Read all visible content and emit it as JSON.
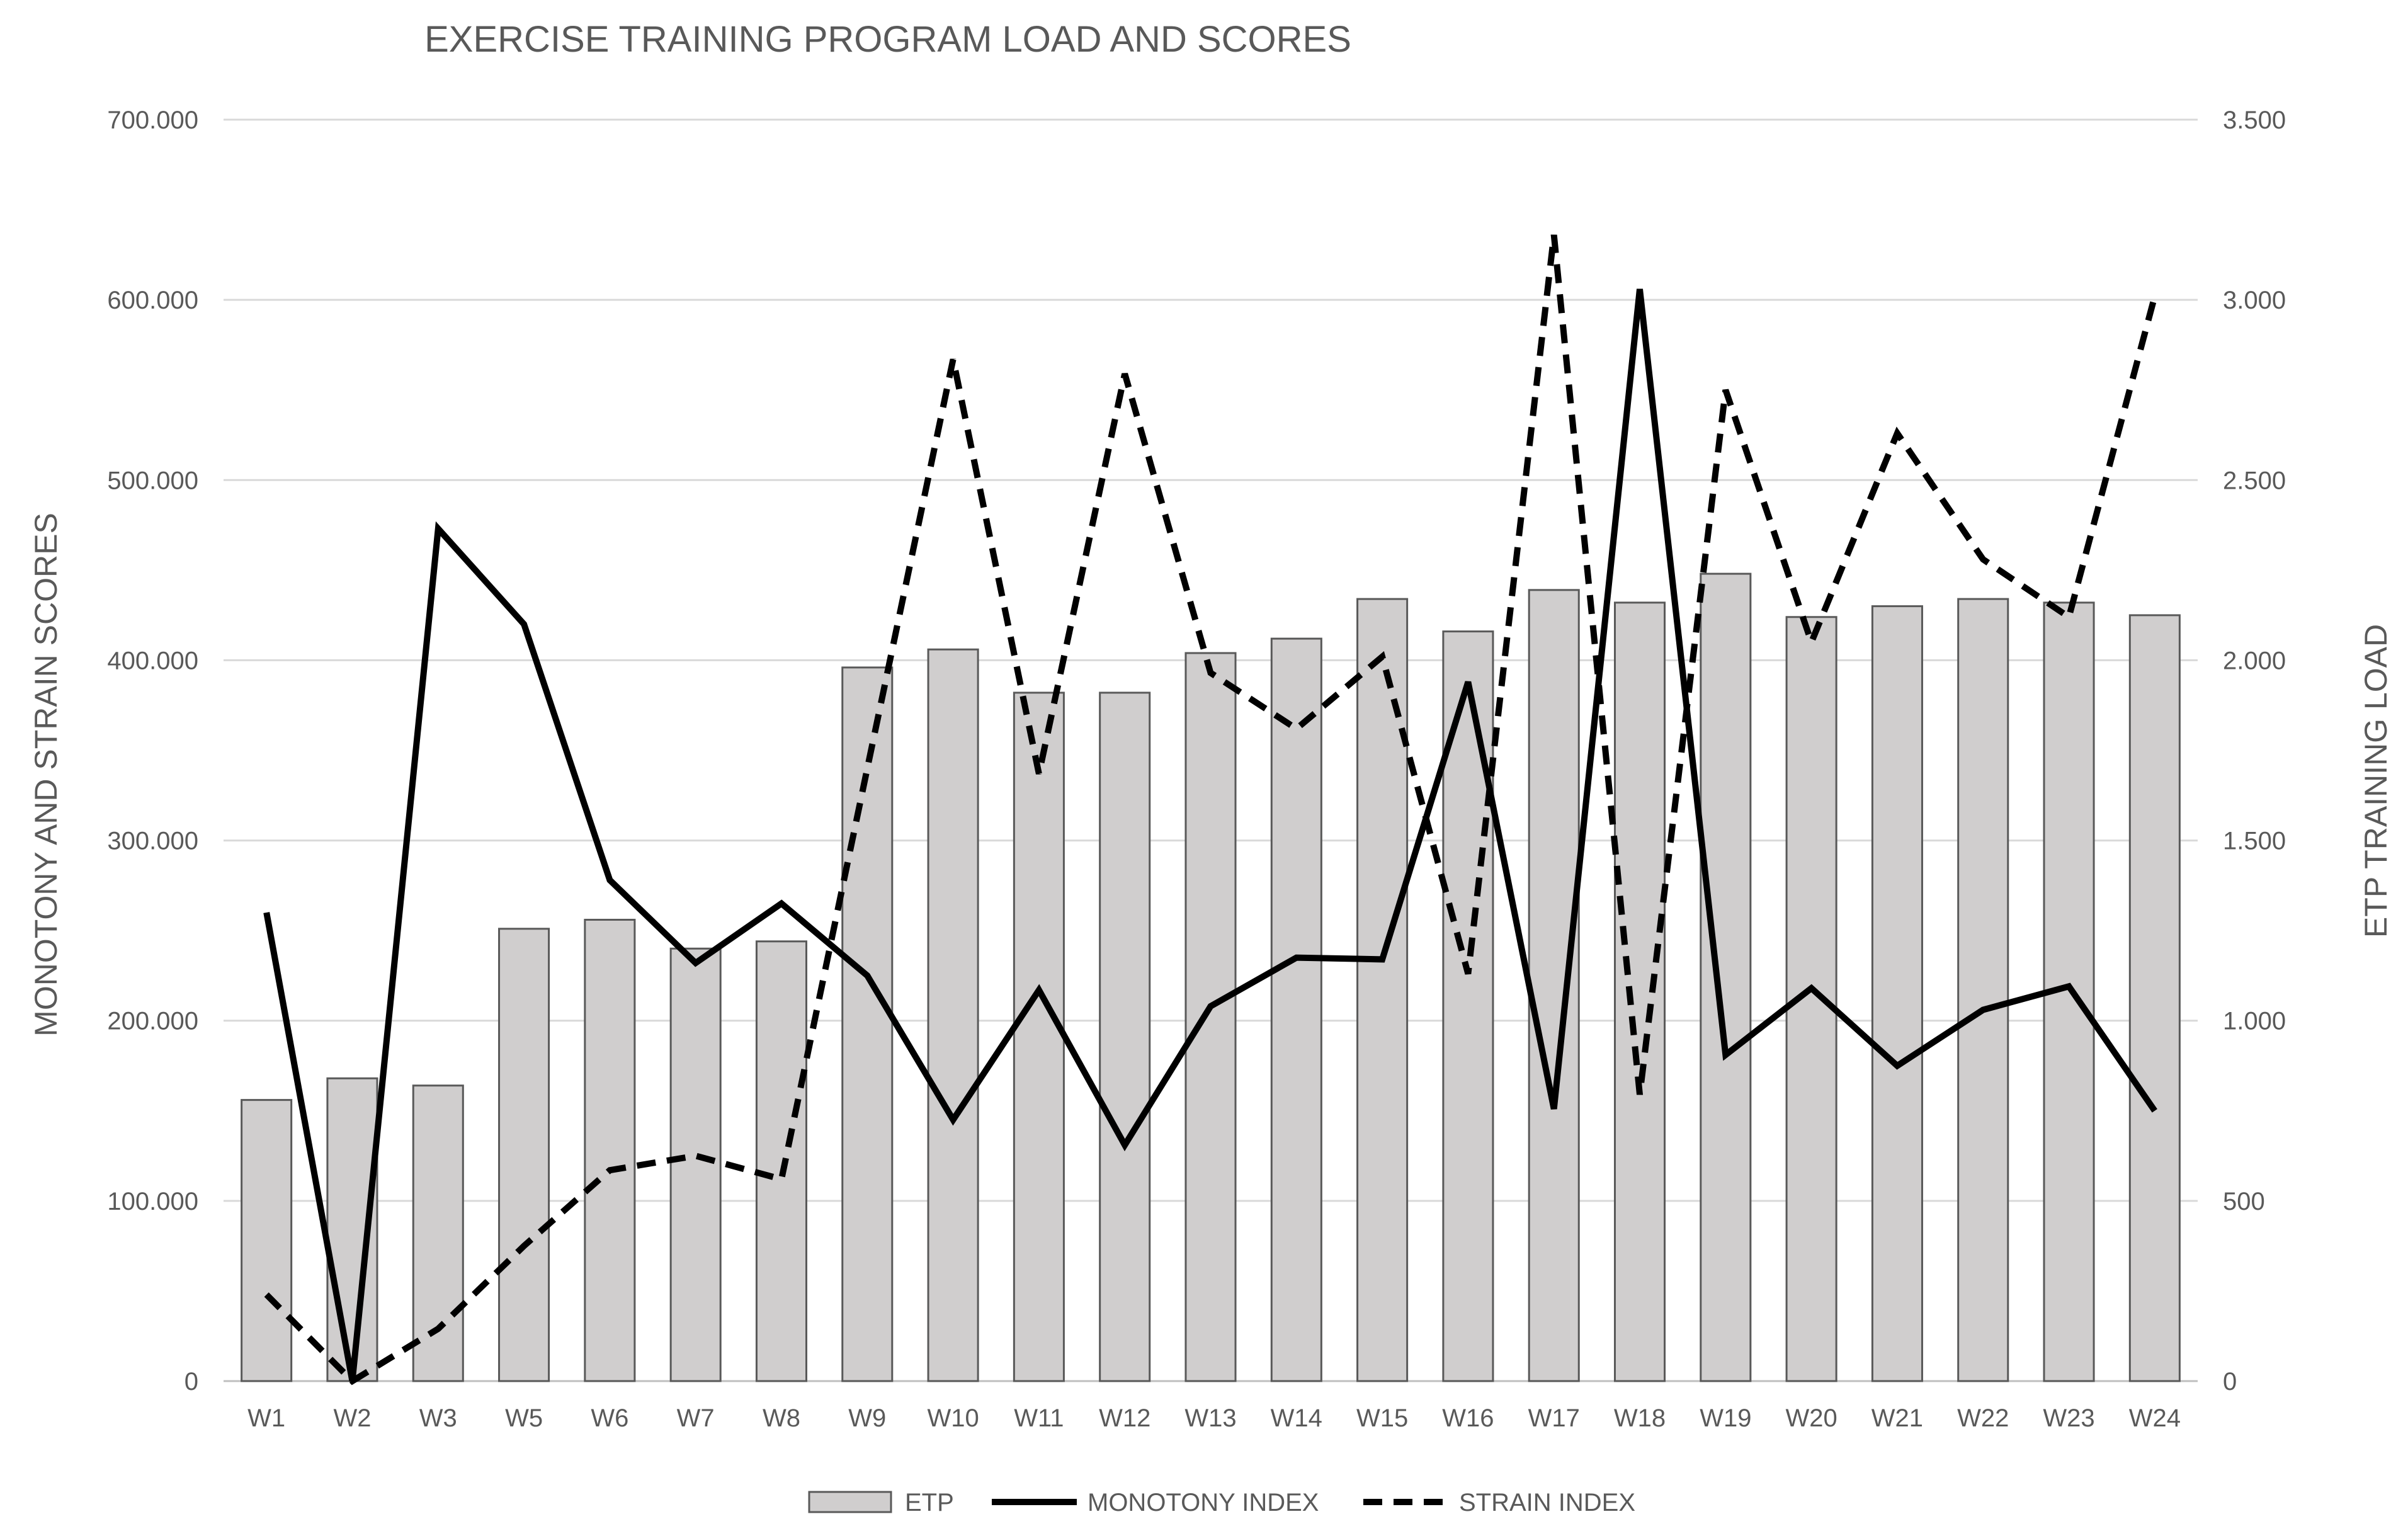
{
  "chart_data": {
    "type": "bar",
    "title": "EXERCISE TRAINING PROGRAM LOAD AND SCORES",
    "categories": [
      "W1",
      "W2",
      "W3",
      "W5",
      "W6",
      "W7",
      "W8",
      "W9",
      "W10",
      "W11",
      "W12",
      "W13",
      "W14",
      "W15",
      "W16",
      "W17",
      "W18",
      "W19",
      "W20",
      "W21",
      "W22",
      "W23",
      "W24"
    ],
    "y_left": {
      "label": "MONOTONY AND STRAIN SCORES",
      "min": 0,
      "max": 700000,
      "ticks": [
        0,
        100000,
        200000,
        300000,
        400000,
        500000,
        600000,
        700000
      ],
      "tick_labels": [
        "0",
        "100.000",
        "200.000",
        "300.000",
        "400.000",
        "500.000",
        "600.000",
        "700.000"
      ]
    },
    "y_right": {
      "label": "ETP TRAINING LOAD",
      "min": 0,
      "max": 3500,
      "ticks": [
        0,
        500,
        1000,
        1500,
        2000,
        2500,
        3000,
        3500
      ],
      "tick_labels": [
        "0",
        "500",
        "1.000",
        "1.500",
        "2.000",
        "2.500",
        "3.000",
        "3.500"
      ]
    },
    "grid": true,
    "legend_position": "bottom",
    "series": [
      {
        "name": "ETP",
        "type": "bar",
        "axis": "right",
        "color": "#d0cece",
        "values": [
          780,
          840,
          820,
          1255,
          1280,
          1200,
          1220,
          1980,
          2030,
          1910,
          1910,
          2020,
          2060,
          2170,
          2080,
          2195,
          2160,
          2240,
          2120,
          2150,
          2170,
          2160,
          2125
        ]
      },
      {
        "name": "MONOTONY INDEX",
        "type": "line",
        "axis": "left",
        "style": "solid",
        "color": "#000000",
        "values": [
          260000,
          0,
          473000,
          420000,
          278000,
          232000,
          265000,
          225000,
          145000,
          217000,
          131000,
          208000,
          235000,
          234000,
          388000,
          151000,
          606000,
          181000,
          218000,
          175000,
          206000,
          219000,
          150000
        ]
      },
      {
        "name": "STRAIN INDEX",
        "type": "line",
        "axis": "left",
        "style": "dashed",
        "color": "#000000",
        "values": [
          48000,
          0,
          29000,
          75000,
          117000,
          125000,
          112000,
          340000,
          567000,
          337000,
          559000,
          393000,
          362000,
          402000,
          226000,
          636000,
          159000,
          550000,
          410000,
          526000,
          456000,
          424000,
          602000
        ]
      }
    ]
  }
}
